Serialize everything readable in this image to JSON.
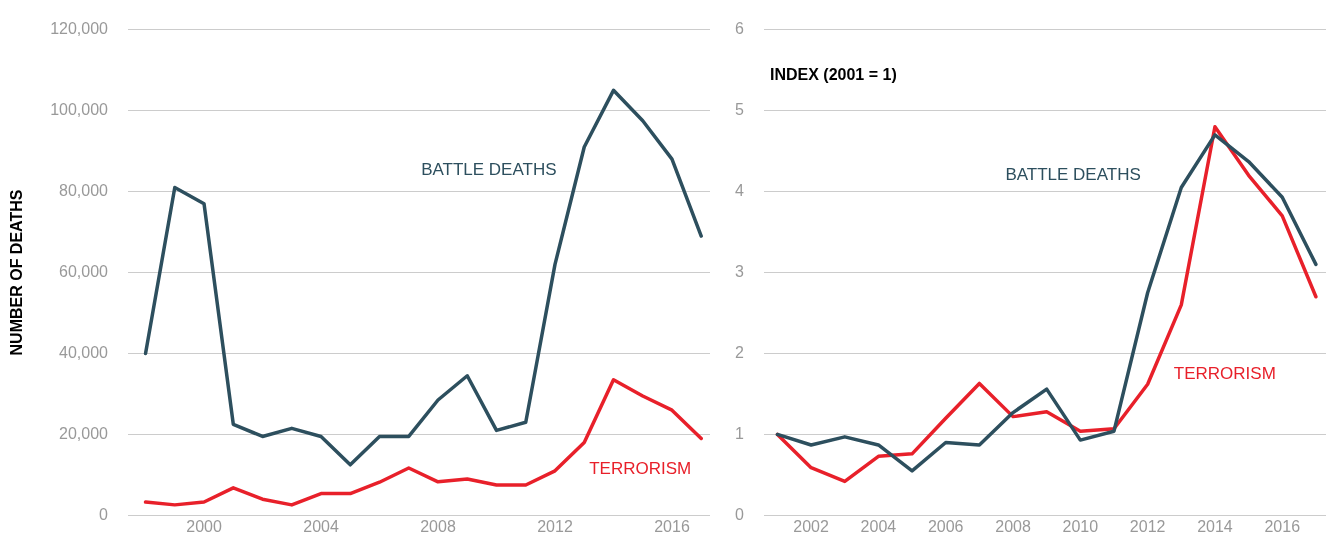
{
  "chart_data": [
    {
      "type": "line",
      "ylabel": "NUMBER OF DEATHS",
      "x": [
        1998,
        1999,
        2000,
        2001,
        2002,
        2003,
        2004,
        2005,
        2006,
        2007,
        2008,
        2009,
        2010,
        2011,
        2012,
        2013,
        2014,
        2015,
        2016,
        2017
      ],
      "series": [
        {
          "name": "BATTLE DEATHS",
          "color": "#2d4f5e",
          "values": [
            40000,
            81000,
            77000,
            22500,
            19500,
            21500,
            19500,
            12500,
            19500,
            19500,
            28500,
            34500,
            21000,
            23000,
            62000,
            91000,
            105000,
            97500,
            88000,
            69000
          ]
        },
        {
          "name": "TERRORISM",
          "color": "#e8202a",
          "values": [
            3300,
            2600,
            3300,
            6800,
            4000,
            2600,
            5400,
            5400,
            8200,
            11700,
            8300,
            9000,
            7500,
            7500,
            11000,
            18000,
            33500,
            29500,
            26000,
            19000
          ]
        }
      ],
      "xlim": [
        1997.4,
        2017.3
      ],
      "xticks": [
        2000,
        2004,
        2008,
        2012,
        2016
      ],
      "ylim": [
        0,
        120000
      ],
      "yticks": [
        0,
        {
          "value": 20000,
          "label": "20,000"
        },
        {
          "value": 40000,
          "label": "40,000"
        },
        {
          "value": 60000,
          "label": "60,000"
        },
        {
          "value": 80000,
          "label": "80,000"
        },
        {
          "value": 100000,
          "label": "100,000"
        },
        {
          "value": 120000,
          "label": "120,000"
        }
      ],
      "grid": "y",
      "legend": false,
      "marker": "none",
      "line_style": "solid"
    },
    {
      "type": "line",
      "ylabel": "INDEX (2001 = 1)",
      "x": [
        2001,
        2002,
        2003,
        2004,
        2005,
        2006,
        2007,
        2008,
        2009,
        2010,
        2011,
        2012,
        2013,
        2014,
        2015,
        2016,
        2017
      ],
      "series": [
        {
          "name": "BATTLE DEATHS",
          "color": "#2d4f5e",
          "values": [
            1,
            0.87,
            0.97,
            0.87,
            0.55,
            0.9,
            0.87,
            1.27,
            1.56,
            0.93,
            1.04,
            2.75,
            4.05,
            4.7,
            4.37,
            3.93,
            3.1
          ]
        },
        {
          "name": "TERRORISM",
          "color": "#e8202a",
          "values": [
            1,
            0.59,
            0.42,
            0.73,
            0.76,
            1.2,
            1.63,
            1.22,
            1.28,
            1.04,
            1.07,
            1.62,
            2.6,
            4.8,
            4.2,
            3.7,
            2.7
          ]
        }
      ],
      "xlim": [
        2000.6,
        2017.3
      ],
      "xticks": [
        2002,
        2004,
        2006,
        2008,
        2010,
        2012,
        2014,
        2016
      ],
      "ylim": [
        0,
        6
      ],
      "yticks": [
        0,
        1,
        2,
        3,
        4,
        5,
        6
      ],
      "grid": "y",
      "legend": false,
      "marker": "none",
      "line_style": "solid"
    }
  ]
}
